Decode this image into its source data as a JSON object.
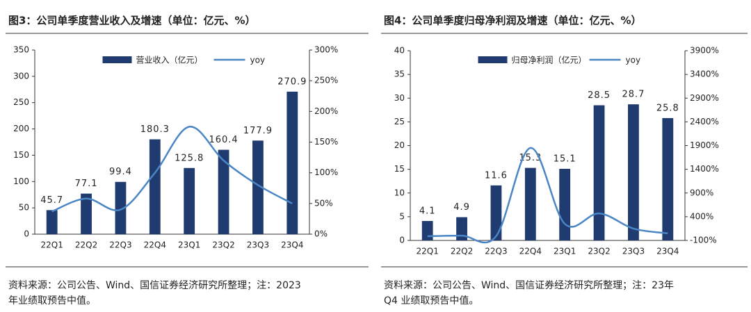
{
  "chart_data": [
    {
      "type": "bar",
      "title": "图3：公司单季度营业收入及增速（单位：亿元、%）",
      "categories": [
        "22Q1",
        "22Q2",
        "22Q3",
        "22Q4",
        "23Q1",
        "23Q2",
        "23Q3",
        "23Q4"
      ],
      "series": [
        {
          "name": "营业收入（亿元）",
          "type": "bar",
          "color": "#1f3b70",
          "values": [
            45.7,
            77.1,
            99.4,
            180.3,
            125.8,
            160.4,
            177.9,
            270.9
          ]
        },
        {
          "name": "yoy",
          "type": "line",
          "axis": "y2",
          "color": "#4a86c5",
          "values": [
            37,
            58,
            40,
            100,
            175,
            120,
            80,
            50
          ]
        }
      ],
      "ylim": [
        0,
        350
      ],
      "yticks": [
        0,
        50,
        100,
        150,
        200,
        250,
        300,
        350
      ],
      "y2lim": [
        0,
        300
      ],
      "y2ticks": [
        {
          "value": 0,
          "label": "0%"
        },
        {
          "value": 50,
          "label": "50%"
        },
        {
          "value": 100,
          "label": "100%"
        },
        {
          "value": 150,
          "label": "150%"
        },
        {
          "value": 200,
          "label": "200%"
        },
        {
          "value": 250,
          "label": "250%"
        },
        {
          "value": 300,
          "label": "300%"
        }
      ],
      "legend": "top",
      "note": [
        "资料来源：公司公告、Wind、国信证券经济研究所整理；注：2023",
        "年业绩取预告中值。"
      ]
    },
    {
      "type": "bar",
      "title": "图4：公司单季度归母净利润及增速（单位：亿元、%）",
      "categories": [
        "22Q1",
        "22Q2",
        "22Q3",
        "22Q4",
        "23Q1",
        "23Q2",
        "23Q3",
        "23Q4"
      ],
      "series": [
        {
          "name": "归母净利润（亿元）",
          "type": "bar",
          "color": "#1f3b70",
          "values": [
            4.1,
            4.9,
            11.6,
            15.3,
            15.1,
            28.5,
            28.7,
            25.8
          ]
        },
        {
          "name": "yoy",
          "type": "line",
          "axis": "y2",
          "color": "#4a86c5",
          "values": [
            -10,
            0,
            -10,
            1850,
            250,
            470,
            150,
            50
          ]
        }
      ],
      "ylim": [
        0,
        40
      ],
      "yticks": [
        0,
        5,
        10,
        15,
        20,
        25,
        30,
        35,
        40
      ],
      "y2lim": [
        -100,
        3900
      ],
      "y2ticks": [
        {
          "value": -100,
          "label": "-100%"
        },
        {
          "value": 400,
          "label": "400%"
        },
        {
          "value": 900,
          "label": "900%"
        },
        {
          "value": 1400,
          "label": "1400%"
        },
        {
          "value": 1900,
          "label": "1900%"
        },
        {
          "value": 2400,
          "label": "2400%"
        },
        {
          "value": 2900,
          "label": "2900%"
        },
        {
          "value": 3400,
          "label": "3400%"
        },
        {
          "value": 3900,
          "label": "3900%"
        }
      ],
      "legend": "top",
      "note": [
        "资料来源：公司公告、Wind、国信证券经济研究所整理；注：23年",
        "Q4 业绩取预告中值。"
      ]
    }
  ]
}
